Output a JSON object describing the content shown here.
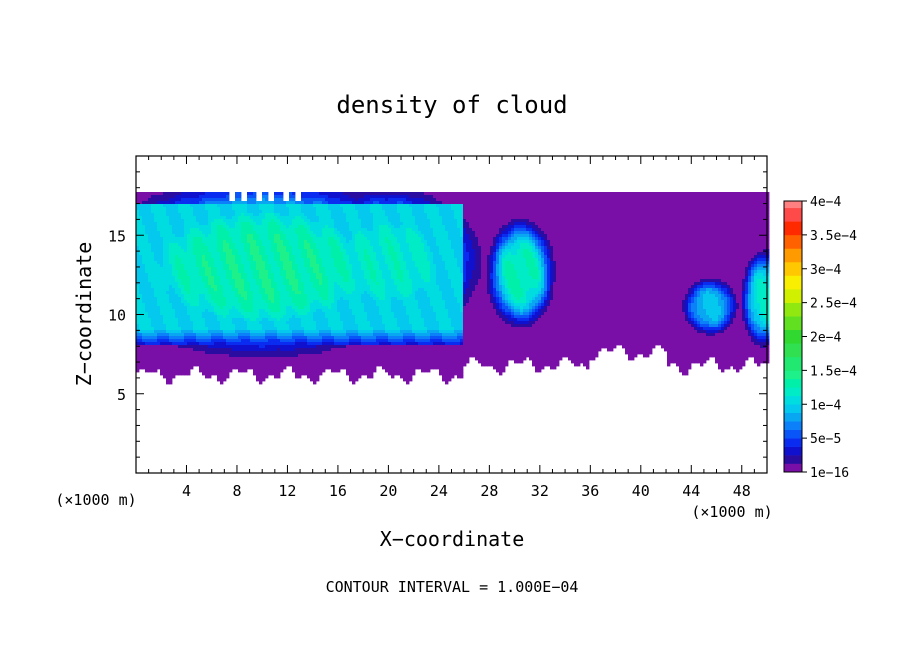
{
  "chart_data": {
    "type": "heatmap",
    "title": "density of cloud",
    "xlabel": "X−coordinate",
    "ylabel": "Z−coordinate",
    "x_unit_left": "(×1000 m)",
    "x_unit_right": "(×1000 m)",
    "xlim": [
      0,
      50
    ],
    "ylim": [
      0,
      20
    ],
    "x_ticks": [
      4,
      8,
      12,
      16,
      20,
      24,
      28,
      32,
      36,
      40,
      44,
      48
    ],
    "y_ticks": [
      5,
      10,
      15
    ],
    "contour_interval_text": "CONTOUR INTERVAL = 1.000E−04",
    "colorbar": {
      "min": 0,
      "max": 0.0004,
      "labels": [
        "4e−4",
        "3.5e−4",
        "3e−4",
        "2.5e−4",
        "2e−4",
        "1.5e−4",
        "1e−4",
        "5e−5",
        "1e−16"
      ],
      "levels": [
        {
          "lo": 0,
          "color": "#7a0fa8"
        },
        {
          "lo": 1.25e-05,
          "color": "#2a0ca0"
        },
        {
          "lo": 2.5e-05,
          "color": "#1010cf"
        },
        {
          "lo": 3.75e-05,
          "color": "#0a2cf0"
        },
        {
          "lo": 5e-05,
          "color": "#0a55f8"
        },
        {
          "lo": 6.25e-05,
          "color": "#0c80f8"
        },
        {
          "lo": 7.5e-05,
          "color": "#09a6f2"
        },
        {
          "lo": 8.75e-05,
          "color": "#05c8ee"
        },
        {
          "lo": 0.0001,
          "color": "#00dde0"
        },
        {
          "lo": 0.0001125,
          "color": "#00ecc6"
        },
        {
          "lo": 0.000125,
          "color": "#00f0aa"
        },
        {
          "lo": 0.0001375,
          "color": "#1ef08a"
        },
        {
          "lo": 0.00015,
          "color": "#20e870"
        },
        {
          "lo": 0.00017,
          "color": "#30e050"
        },
        {
          "lo": 0.00019,
          "color": "#30d830"
        },
        {
          "lo": 0.00021,
          "color": "#60e020"
        },
        {
          "lo": 0.00023,
          "color": "#90e810"
        },
        {
          "lo": 0.00025,
          "color": "#d0f000"
        },
        {
          "lo": 0.00027,
          "color": "#f8f000"
        },
        {
          "lo": 0.00029,
          "color": "#ffc800"
        },
        {
          "lo": 0.00031,
          "color": "#ff9a00"
        },
        {
          "lo": 0.00033,
          "color": "#ff6000"
        },
        {
          "lo": 0.00035,
          "color": "#ff2a00"
        },
        {
          "lo": 0.00037,
          "color": "#ff4a4a"
        },
        {
          "lo": 0.00039,
          "color": "#ff8080"
        }
      ]
    },
    "fields": {
      "cloud_top_z": 17.8,
      "cloud_base_z": 6.2,
      "blobs": [
        {
          "x": 10,
          "z": 13.0,
          "rx": 11,
          "rz": 4.6,
          "peak": 0.000132
        },
        {
          "x": 20,
          "z": 13.3,
          "rx": 6,
          "rz": 3.8,
          "peak": 0.000118
        },
        {
          "x": 30.5,
          "z": 12.6,
          "rx": 2.2,
          "rz": 2.8,
          "peak": 0.000126
        },
        {
          "x": 45.5,
          "z": 10.5,
          "rx": 1.8,
          "rz": 1.5,
          "peak": 9e-05
        },
        {
          "x": 49.8,
          "z": 11.0,
          "rx": 1.5,
          "rz": 2.5,
          "peak": 0.000115
        }
      ]
    }
  }
}
